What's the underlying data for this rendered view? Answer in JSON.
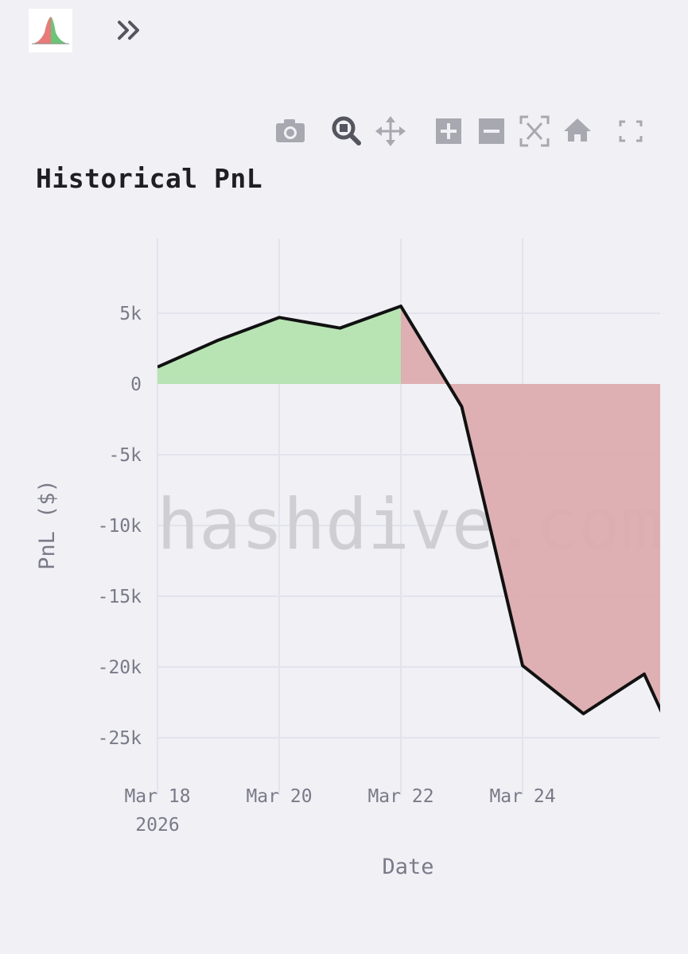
{
  "app": {
    "logo_icon": "bell-curve-logo-icon",
    "expand_icon": "double-chevron-right-icon"
  },
  "modebar": {
    "buttons": [
      {
        "icon": "camera-icon"
      },
      {
        "icon": "zoom-icon"
      },
      {
        "icon": "pan-icon"
      },
      {
        "icon": "zoom-in-icon"
      },
      {
        "icon": "zoom-out-icon"
      },
      {
        "icon": "autoscale-icon"
      },
      {
        "icon": "reset-home-icon"
      },
      {
        "icon": "fullscreen-icon"
      }
    ]
  },
  "watermark": "hashdive.com",
  "chart_data": {
    "type": "area",
    "title": "Historical PnL",
    "xlabel": "Date",
    "ylabel": "PnL ($)",
    "x": [
      "2026-03-18",
      "2026-03-19",
      "2026-03-20",
      "2026-03-21",
      "2026-03-22",
      "2026-03-23",
      "2026-03-24",
      "2026-03-25",
      "2026-03-26",
      "2026-03-26T12:00"
    ],
    "y": [
      1200,
      3100,
      4700,
      3950,
      5500,
      -1600,
      -19900,
      -23300,
      -20500,
      -25200
    ],
    "xticks": [
      {
        "date": "2026-03-18",
        "label": "Mar 18",
        "sublabel": "2026"
      },
      {
        "date": "2026-03-20",
        "label": "Mar 20",
        "sublabel": ""
      },
      {
        "date": "2026-03-22",
        "label": "Mar 22",
        "sublabel": ""
      },
      {
        "date": "2026-03-24",
        "label": "Mar 24",
        "sublabel": ""
      }
    ],
    "yticks": [
      {
        "value": 5000,
        "label": "5k"
      },
      {
        "value": 0,
        "label": "0"
      },
      {
        "value": -5000,
        "label": "-5k"
      },
      {
        "value": -10000,
        "label": "-10k"
      },
      {
        "value": -15000,
        "label": "-15k"
      },
      {
        "value": -20000,
        "label": "-20k"
      },
      {
        "value": -25000,
        "label": "-25k"
      }
    ],
    "ylim": [
      -26500,
      7000
    ],
    "grid": true,
    "colors": {
      "positive_fill": "#b8e4b4",
      "negative_fill": "#dcacaf",
      "line": "#111111",
      "grid": "#e3e3ee"
    }
  }
}
